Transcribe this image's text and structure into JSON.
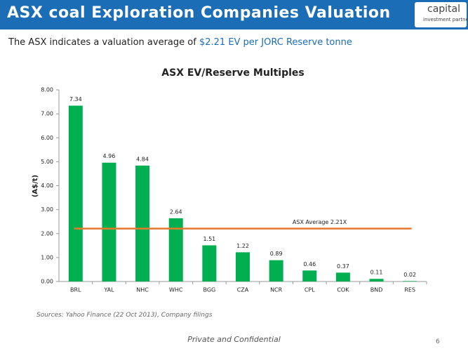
{
  "header": {
    "title": "ASX coal Exploration Companies Valuation",
    "logo": [
      "capital",
      "investment partners"
    ]
  },
  "subtitle": {
    "text": "The ASX indicates a valuation average of",
    "highlight": "$2.21 EV per JORC Reserve tonne"
  },
  "chart_data": {
    "type": "bar",
    "title": "ASX EV/Reserve Multiples",
    "y_label": "(A$/t)",
    "categories": [
      "BRL",
      "YAL",
      "NHC",
      "WHC",
      "BGG",
      "CZA",
      "NCR",
      "CPL",
      "COK",
      "BND",
      "RES"
    ],
    "values": [
      7.34,
      4.96,
      4.84,
      2.64,
      1.51,
      1.22,
      0.89,
      0.46,
      0.37,
      0.11,
      0.02
    ],
    "color": "#00b050",
    "ylim": [
      0,
      8
    ],
    "yticks": [
      {
        "value": 0,
        "label": "0.00"
      },
      {
        "value": 1,
        "label": "1.00"
      },
      {
        "value": 2,
        "label": "2.00"
      },
      {
        "value": 3,
        "label": "3.00"
      },
      {
        "value": 4,
        "label": "4.00"
      },
      {
        "value": 5,
        "label": "5.00"
      },
      {
        "value": 6,
        "label": "6.00"
      },
      {
        "value": 7,
        "label": "7.00"
      },
      {
        "value": 8,
        "label": "8.00"
      }
    ],
    "average": {
      "value": 2.21,
      "label": "ASX Average 2.21X",
      "color": "#e8782a"
    }
  },
  "footer": {
    "sources": "Sources: Yahoo Finance (22 Oct 2013), Company filings",
    "confidential": "Private and Confidential",
    "page": "6"
  }
}
